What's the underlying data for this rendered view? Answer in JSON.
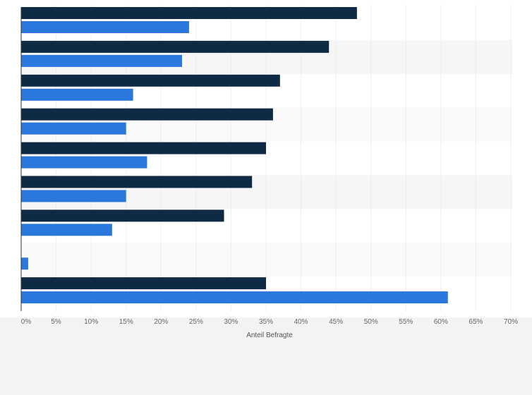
{
  "chart_data": {
    "type": "bar",
    "orientation": "horizontal",
    "categories": [
      "",
      "",
      "",
      "",
      "",
      "",
      "",
      "",
      ""
    ],
    "series": [
      {
        "color": "#0f2a45",
        "values": [
          48,
          44,
          37,
          36,
          35,
          33,
          29,
          null,
          35
        ]
      },
      {
        "color": "#2a78dc",
        "values": [
          24,
          23,
          16,
          15,
          18,
          15,
          13,
          1,
          61
        ]
      }
    ],
    "xlabel": "Anteil Befragte",
    "ylabel": "",
    "xlim": [
      0,
      70
    ],
    "x_ticks": [
      "0%",
      "5%",
      "10%",
      "15%",
      "20%",
      "25%",
      "30%",
      "35%",
      "40%",
      "45%",
      "50%",
      "55%",
      "60%",
      "65%",
      "70%"
    ],
    "grid": true,
    "legend": "none"
  }
}
